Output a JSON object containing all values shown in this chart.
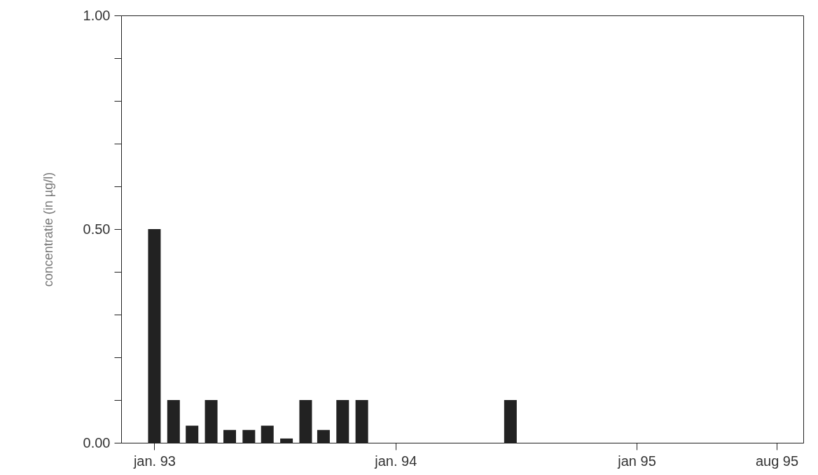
{
  "chart_data": {
    "type": "bar",
    "ylabel": "concentratie (in µg/l)",
    "x": [
      "1993-01-01",
      "1993-01-30",
      "1993-02-27",
      "1993-03-28",
      "1993-04-25",
      "1993-05-24",
      "1993-06-21",
      "1993-07-20",
      "1993-08-18",
      "1993-09-14",
      "1993-10-13",
      "1993-11-11",
      "1994-06-24"
    ],
    "values": [
      0.5,
      0.1,
      0.04,
      0.1,
      0.03,
      0.03,
      0.04,
      0.01,
      0.1,
      0.03,
      0.1,
      0.1,
      0.1
    ],
    "color": "#222222",
    "xlim": [
      "1992-11-17",
      "1995-09-05"
    ],
    "xticks": [
      {
        "value": "1993-01-01",
        "label": "jan. 93"
      },
      {
        "value": "1994-01-01",
        "label": "jan. 94"
      },
      {
        "value": "1995-01-01",
        "label": "jan 95"
      },
      {
        "value": "1995-08-01",
        "label": "aug 95"
      }
    ],
    "ylim": [
      0,
      1
    ],
    "yticks": [
      {
        "value": 0,
        "label": "0.00"
      },
      {
        "value": 0.1,
        "label": null
      },
      {
        "value": 0.2,
        "label": null
      },
      {
        "value": 0.3,
        "label": null
      },
      {
        "value": 0.4,
        "label": null
      },
      {
        "value": 0.5,
        "label": "0.50"
      },
      {
        "value": 0.6,
        "label": null
      },
      {
        "value": 0.7,
        "label": null
      },
      {
        "value": 0.8,
        "label": null
      },
      {
        "value": 0.9,
        "label": null
      },
      {
        "value": 1,
        "label": "1.00"
      }
    ],
    "grid": false
  }
}
